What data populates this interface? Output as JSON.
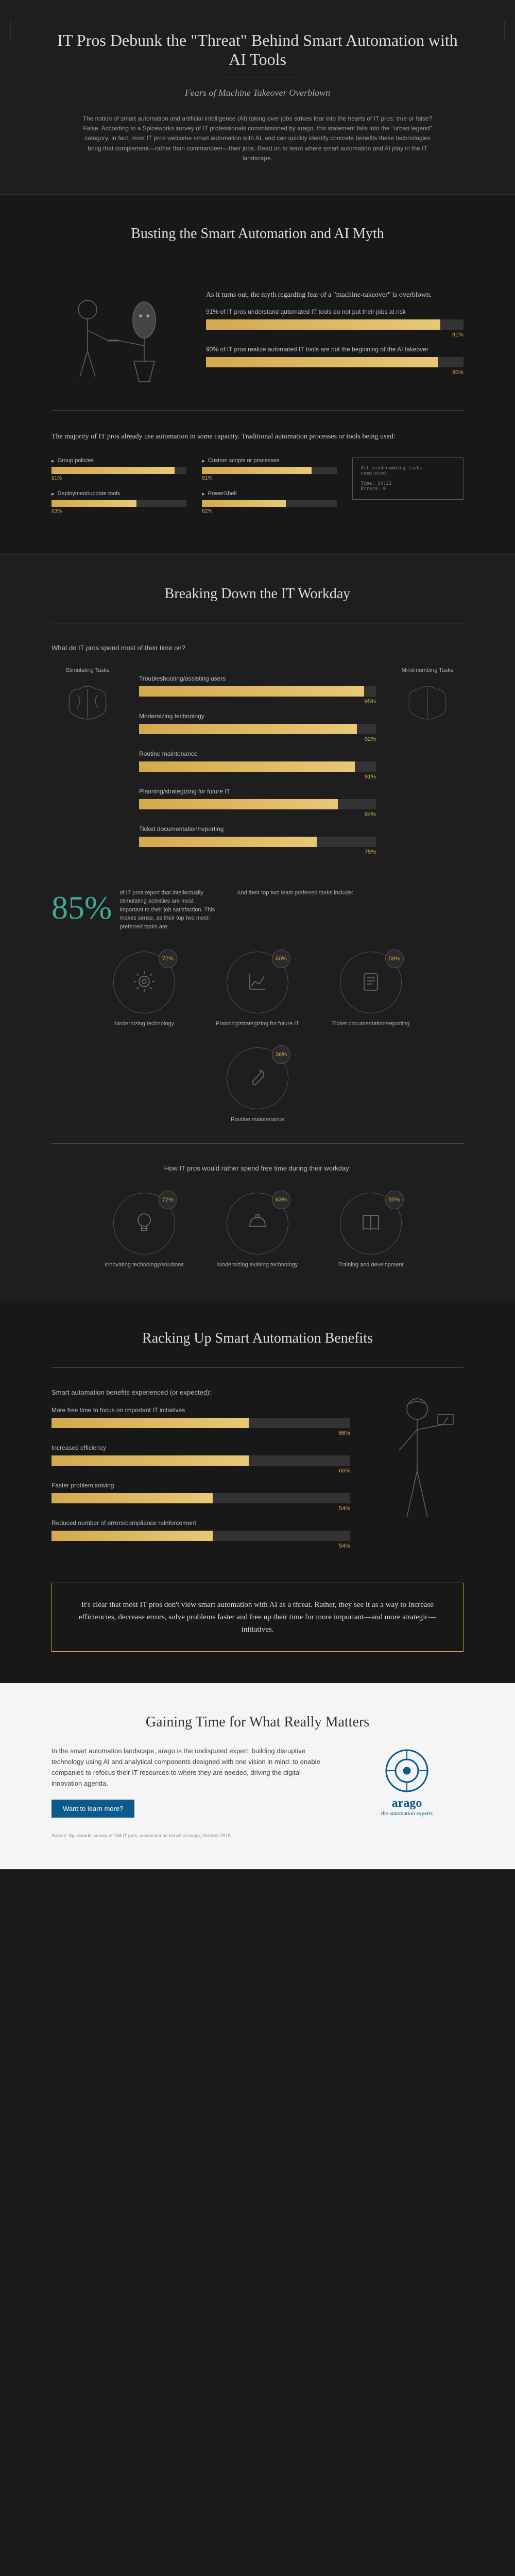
{
  "header": {
    "title": "IT Pros Debunk the \"Threat\" Behind Smart Automation with AI Tools",
    "subtitle": "Fears of Machine Takeover Overblown",
    "intro": "The notion of smart automation and artificial intelligence (AI) taking over jobs strikes fear into the hearts of IT pros: true or false? False. According to a Spiceworks survey of IT professionals commissioned by arago, this statement falls into the \"urban legend\" category. In fact, most IT pros welcome smart automation with AI, and can quickly identify concrete benefits these technologies bring that complement—rather than commandeer—their jobs. Read on to learn where smart automation and AI play in the IT landscape."
  },
  "myth": {
    "heading": "Busting the Smart Automation and AI Myth",
    "intro": "As it turns out, the myth regarding fear of a \"machine-takeover\" is overblown.",
    "bars": [
      {
        "label": "91% of IT pros understand automated IT tools do not put their jobs at risk",
        "pct": 91
      },
      {
        "label": "90% of IT pros realize automated IT tools are not the beginning of the AI takeover",
        "pct": 90
      }
    ],
    "tools_intro": "The majority of IT pros already use automation in some capacity. Traditional automation processes or tools being used:",
    "tools": [
      {
        "label": "Group policies",
        "pct": 91
      },
      {
        "label": "Custom scripts or processes",
        "pct": 81
      },
      {
        "label": "Deployment/update tools",
        "pct": 63
      },
      {
        "label": "PowerShell",
        "pct": 62
      }
    ],
    "terminal": "All mind-numbing tasks\ncompleted.\n\nTime: 14:23\nErrors: 0"
  },
  "workday": {
    "heading": "Breaking Down the IT Workday",
    "question": "What do IT pros spend most of their time on?",
    "left_label": "Stimulating Tasks",
    "right_label": "Mind-numbing Tasks",
    "bars": [
      {
        "label": "Troubleshooting/assisting users",
        "pct": 95
      },
      {
        "label": "Modernizing technology",
        "pct": 92
      },
      {
        "label": "Routine maintenance",
        "pct": 91
      },
      {
        "label": "Planning/strategizing for future IT",
        "pct": 84
      },
      {
        "label": "Ticket documentation/reporting",
        "pct": 75
      }
    ],
    "stat_pct": "85%",
    "stat_text": "of IT pros report that intellectually stimulating activities are most important to their job satisfaction. This makes sense, as their top two most-preferred tasks are:",
    "least_intro": "And their top two least preferred tasks include:",
    "preferred": [
      {
        "label": "Modernizing technology",
        "pct": "72%"
      },
      {
        "label": "Planning/strategizing for future IT",
        "pct": "60%"
      }
    ],
    "least": [
      {
        "label": "Ticket documentation/reporting",
        "pct": "59%"
      },
      {
        "label": "Routine maintenance",
        "pct": "36%"
      }
    ],
    "freetime_intro": "How IT pros would rather spend free time during their workday:",
    "freetime": [
      {
        "label": "Innovating technology/solutions",
        "pct": "72%"
      },
      {
        "label": "Modernizing existing technology",
        "pct": "63%"
      },
      {
        "label": "Training and development",
        "pct": "55%"
      }
    ]
  },
  "benefits": {
    "heading": "Racking Up Smart Automation Benefits",
    "intro": "Smart automation benefits experienced (or expected):",
    "bars": [
      {
        "label": "More free time to focus on important IT initiatives",
        "pct": 66
      },
      {
        "label": "Increased efficiency",
        "pct": 66
      },
      {
        "label": "Faster problem solving",
        "pct": 54
      },
      {
        "label": "Reduced number of errors/compliance reinforcement",
        "pct": 54
      }
    ],
    "callout": "It's clear that most IT pros don't view smart automation with AI as a threat. Rather, they see it as a way to increase efficiencies, decrease errors, solve problems faster and free up their time for more important—and more strategic—initiatives."
  },
  "arago": {
    "heading": "Gaining Time for What Really Matters",
    "text": "In the smart automation landscape, arago is the undisputed expert, building disruptive technology using AI and analytical components designed with one vision in mind: to enable companies to refocus their IT resources to where they are needed, driving the digital innovation agenda.",
    "logo_name": "arago",
    "logo_tag": "the automation experts",
    "cta": "Want to learn more?",
    "source": "Source: Spiceworks survey of 184 IT pros, conducted on behalf of arago, October 2015."
  },
  "colors": {
    "gold": "#d4a94e",
    "gold_light": "#e8c876",
    "teal": "#3fa896",
    "blue": "#0b5a8c"
  }
}
